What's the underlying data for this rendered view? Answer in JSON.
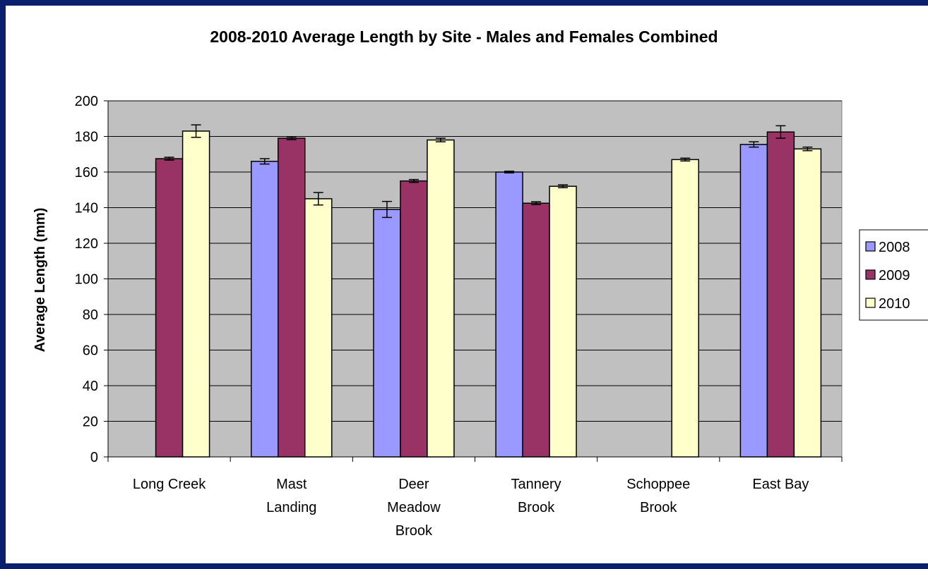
{
  "chart_data": {
    "type": "bar",
    "title": "2008-2010 Average Length by Site - Males and Females Combined",
    "xlabel": "",
    "ylabel": "Average Length (mm)",
    "ylim": [
      0,
      200
    ],
    "yticks": [
      0,
      20,
      40,
      60,
      80,
      100,
      120,
      140,
      160,
      180,
      200
    ],
    "grid": true,
    "legend_position": "right",
    "categories": [
      [
        "Long Creek"
      ],
      [
        "Mast",
        "Landing"
      ],
      [
        "Deer",
        "Meadow",
        "Brook"
      ],
      [
        "Tannery",
        "Brook"
      ],
      [
        "Schoppee",
        "Brook"
      ],
      [
        "East Bay"
      ]
    ],
    "series": [
      {
        "name": "2008",
        "color": "#9999ff",
        "values": [
          null,
          166,
          139,
          160,
          null,
          175.5
        ],
        "errors": [
          null,
          1.5,
          4.5,
          0.5,
          null,
          1.5
        ]
      },
      {
        "name": "2009",
        "color": "#993366",
        "values": [
          167.5,
          179,
          155,
          142.5,
          null,
          182.5
        ],
        "errors": [
          0.8,
          0.8,
          0.8,
          0.8,
          null,
          3.5
        ]
      },
      {
        "name": "2010",
        "color": "#ffffcc",
        "values": [
          183,
          145,
          178,
          152,
          167,
          173
        ],
        "errors": [
          3.5,
          3.5,
          1,
          0.8,
          0.8,
          1
        ]
      }
    ]
  }
}
